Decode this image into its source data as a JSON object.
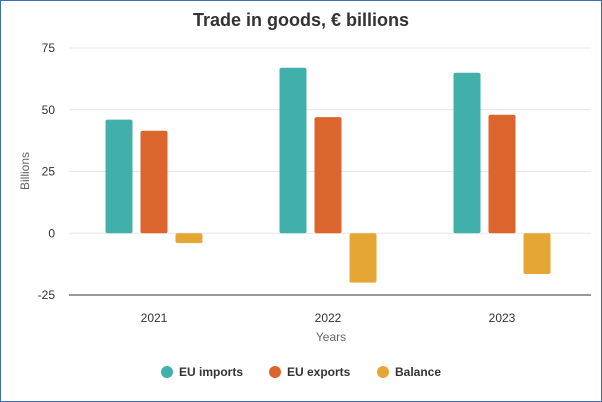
{
  "chart_data": {
    "type": "bar",
    "title": "Trade in goods, € billions",
    "xlabel": "Years",
    "ylabel": "Billions",
    "categories": [
      "2021",
      "2022",
      "2023"
    ],
    "ylim": [
      -25,
      75
    ],
    "yticks": [
      75,
      50,
      25,
      0,
      -25
    ],
    "grid": true,
    "legend_position": "bottom",
    "series": [
      {
        "name": "EU imports",
        "color": "#41b0aa",
        "values": [
          46,
          67,
          65
        ]
      },
      {
        "name": "EU exports",
        "color": "#db652d",
        "values": [
          41.5,
          47,
          48
        ]
      },
      {
        "name": "Balance",
        "color": "#e5a633",
        "values": [
          -4,
          -20,
          -16.5
        ]
      }
    ]
  }
}
